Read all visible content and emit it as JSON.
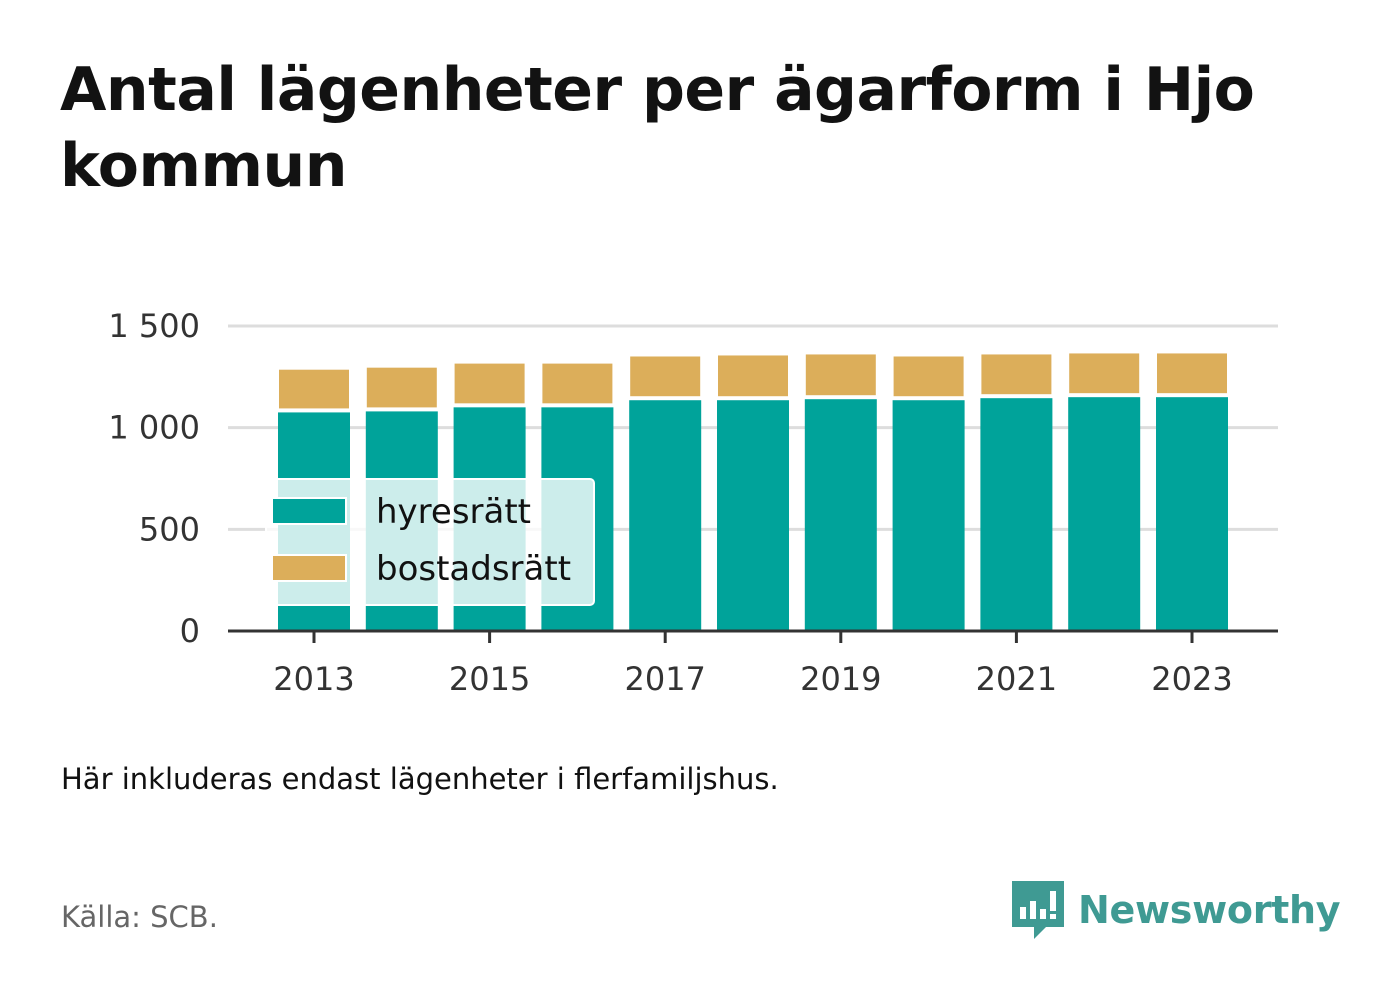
{
  "title": "Antal lägenheter per ägarform i Hjo kommun",
  "note": "Här inkluderas endast lägenheter i flerfamiljshus.",
  "source": "Källa: SCB.",
  "brand": {
    "name": "Newsworthy",
    "icon": "newsworthy-logo-icon",
    "color": "#3f9a93"
  },
  "colors": {
    "hyresratt": "#00a39a",
    "bostadsratt": "#dcae5a",
    "grid": "#dddddd",
    "axis": "#333333"
  },
  "chart_data": {
    "type": "bar",
    "stacked": true,
    "title": "Antal lägenheter per ägarform i Hjo kommun",
    "xlabel": "",
    "ylabel": "",
    "categories": [
      "2013",
      "2014",
      "2015",
      "2016",
      "2017",
      "2018",
      "2019",
      "2020",
      "2021",
      "2022",
      "2023"
    ],
    "x_tick_labels": [
      "2013",
      "2015",
      "2017",
      "2019",
      "2021",
      "2023"
    ],
    "y_tick_labels": [
      "0",
      "500",
      "1 000",
      "1 500"
    ],
    "y_ticks": [
      0,
      500,
      1000,
      1500
    ],
    "ylim": [
      0,
      1500
    ],
    "grid": true,
    "legend": "inside-left",
    "series": [
      {
        "name": "hyresrätt",
        "color": "#00a39a",
        "values": [
          1075,
          1080,
          1100,
          1100,
          1135,
          1135,
          1140,
          1135,
          1145,
          1150,
          1150
        ]
      },
      {
        "name": "bostadsrätt",
        "color": "#dcae5a",
        "values": [
          215,
          220,
          220,
          220,
          220,
          225,
          225,
          220,
          220,
          220,
          220
        ]
      }
    ]
  }
}
